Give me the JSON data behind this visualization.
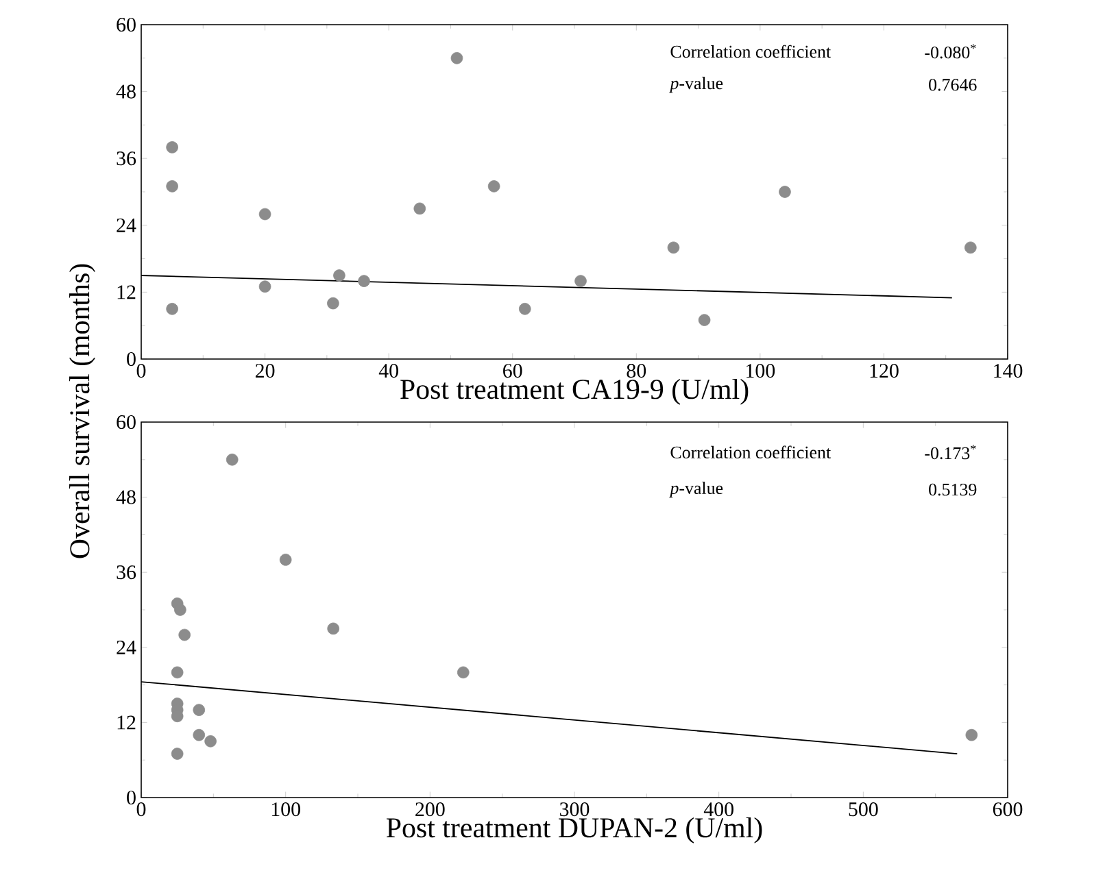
{
  "chart_data": [
    {
      "type": "scatter",
      "xlabel": "Post treatment CA19-9 (U/ml)",
      "ylabel": "Overall survival  (months)",
      "xlim": [
        0,
        140
      ],
      "ylim": [
        0,
        60
      ],
      "xticks": [
        0,
        20,
        40,
        60,
        80,
        100,
        120,
        140
      ],
      "yticks": [
        0,
        12,
        24,
        36,
        48,
        60
      ],
      "series": [
        {
          "marker": "circle",
          "color": "#8c8c8c",
          "x": [
            5,
            5,
            5,
            20,
            20,
            31,
            32,
            36,
            45,
            51,
            57,
            62,
            71,
            86,
            91,
            104,
            134
          ],
          "values": [
            38,
            31,
            9,
            26,
            13,
            10,
            15,
            14,
            27,
            54,
            31,
            9,
            14,
            20,
            7,
            30,
            20
          ]
        },
        {
          "type": "line",
          "marker": "none",
          "color": "#000000",
          "x": [
            0,
            131
          ],
          "values": [
            15,
            11
          ]
        }
      ],
      "annotations": [
        "Correlation coefficient",
        "-0.080$^{*}$",
        "*p*-value",
        "0.7646"
      ]
    },
    {
      "type": "scatter",
      "xlabel": "Post treatment DUPAN-2 (U/ml)",
      "xlim": [
        0,
        600
      ],
      "ylim": [
        0,
        60
      ],
      "xticks": [
        0,
        100,
        200,
        300,
        400,
        500,
        600
      ],
      "yticks": [
        0,
        12,
        24,
        36,
        48,
        60
      ],
      "series": [
        {
          "marker": "circle",
          "color": "#8c8c8c",
          "x": [
            63,
            100,
            25,
            27,
            30,
            25,
            133,
            223,
            25,
            25,
            25,
            40,
            40,
            48,
            25,
            575
          ],
          "values": [
            54,
            38,
            31,
            30,
            26,
            20,
            27,
            20,
            15,
            14,
            13,
            14,
            10,
            9,
            7,
            10
          ]
        },
        {
          "type": "line",
          "marker": "none",
          "color": "#000000",
          "x": [
            0,
            565
          ],
          "values": [
            18.5,
            7
          ]
        }
      ],
      "annotations": [
        "Correlation coefficient",
        "-0.173$^{*}$",
        "*p*-value",
        "0.5139"
      ]
    }
  ]
}
